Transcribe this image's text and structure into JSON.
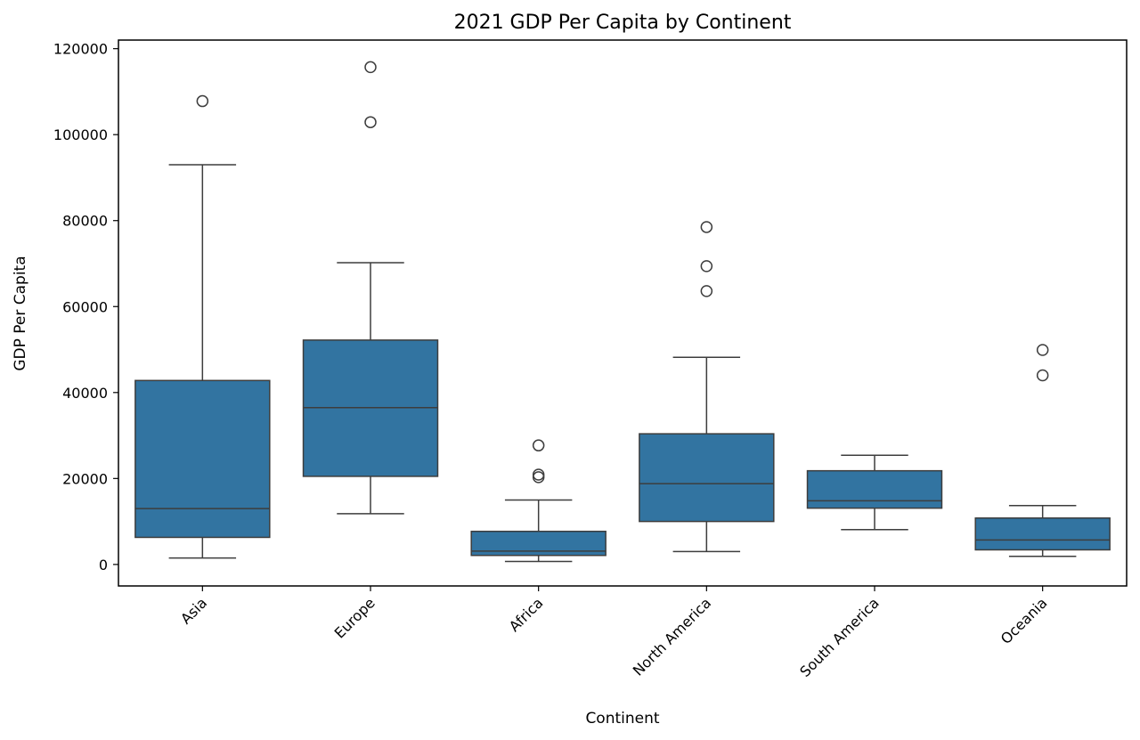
{
  "chart_data": {
    "type": "box",
    "title": "2021 GDP Per Capita by Continent",
    "xlabel": "Continent",
    "ylabel": "GDP Per Capita",
    "ylim": [
      -5000,
      122000
    ],
    "yticks": [
      0,
      20000,
      40000,
      60000,
      80000,
      100000,
      120000
    ],
    "grid": false,
    "box_color": "#3274a1",
    "line_color": "#3d3d3d",
    "categories": [
      "Asia",
      "Europe",
      "Africa",
      "North America",
      "South America",
      "Oceania"
    ],
    "boxes": [
      {
        "category": "Asia",
        "whisker_low": 1500,
        "q1": 6300,
        "median": 13000,
        "q3": 42800,
        "whisker_high": 93000,
        "outliers": [
          107800
        ]
      },
      {
        "category": "Europe",
        "whisker_low": 11800,
        "q1": 20500,
        "median": 36500,
        "q3": 52200,
        "whisker_high": 70200,
        "outliers": [
          102900,
          115700
        ]
      },
      {
        "category": "Africa",
        "whisker_low": 700,
        "q1": 2100,
        "median": 3100,
        "q3": 7700,
        "whisker_high": 15000,
        "outliers": [
          20300,
          20900,
          27700
        ]
      },
      {
        "category": "North America",
        "whisker_low": 3000,
        "q1": 10000,
        "median": 18800,
        "q3": 30400,
        "whisker_high": 48200,
        "outliers": [
          63600,
          69400,
          78500
        ]
      },
      {
        "category": "South America",
        "whisker_low": 8100,
        "q1": 13100,
        "median": 14800,
        "q3": 21800,
        "whisker_high": 25400,
        "outliers": []
      },
      {
        "category": "Oceania",
        "whisker_low": 1900,
        "q1": 3400,
        "median": 5700,
        "q3": 10800,
        "whisker_high": 13700,
        "outliers": [
          44000,
          49900
        ]
      }
    ]
  }
}
